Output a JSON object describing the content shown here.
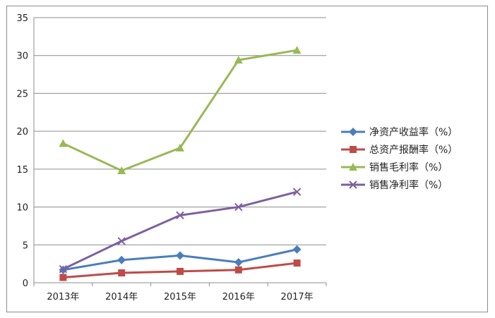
{
  "chart_data": {
    "type": "line",
    "title": "",
    "xlabel": "",
    "ylabel": "",
    "ylim": [
      0,
      35
    ],
    "yticks": [
      0,
      5,
      10,
      15,
      20,
      25,
      30,
      35
    ],
    "grid": true,
    "legend_position": "right",
    "categories": [
      "2013年",
      "2014年",
      "2015年",
      "2016年",
      "2017年"
    ],
    "series": [
      {
        "name": "净资产收益率（%）",
        "color": "#4a7ebb",
        "marker": "diamond",
        "values": [
          1.7,
          3.0,
          3.6,
          2.7,
          4.4
        ]
      },
      {
        "name": "总资产报酬率（%）",
        "color": "#be4b48",
        "marker": "square",
        "values": [
          0.7,
          1.3,
          1.5,
          1.7,
          2.6
        ]
      },
      {
        "name": "销售毛利率（%）",
        "color": "#98b954",
        "marker": "triangle",
        "values": [
          18.4,
          14.8,
          17.8,
          29.4,
          30.7
        ]
      },
      {
        "name": "销售净利率（%）",
        "color": "#7d60a0",
        "marker": "x",
        "values": [
          1.8,
          5.5,
          8.9,
          10.0,
          12.0
        ]
      }
    ]
  }
}
